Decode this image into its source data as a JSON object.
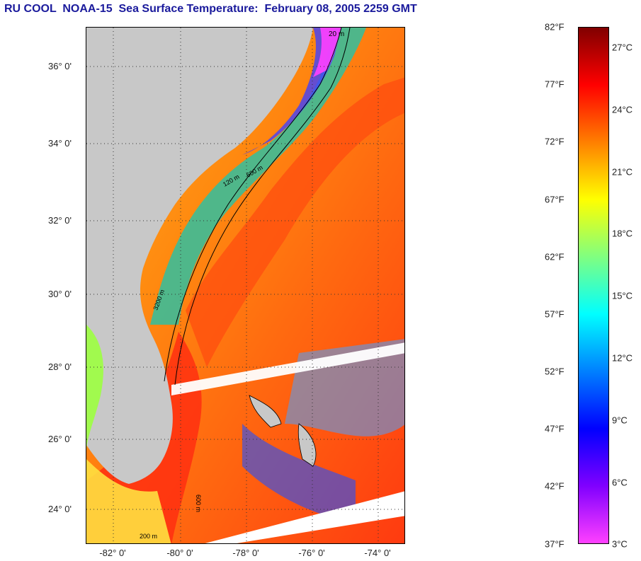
{
  "title": "RU COOL  NOAA-15  Sea Surface Temperature:  February 08, 2005 2259 GMT",
  "map": {
    "lat_labels": [
      "36° 0'",
      "34° 0'",
      "32° 0'",
      "30° 0'",
      "28° 0'",
      "26° 0'",
      "24° 0'"
    ],
    "lon_labels": [
      "-82° 0'",
      "-80° 0'",
      "-78° 0'",
      "-76° 0'",
      "-74° 0'"
    ],
    "land_color": "#c8c8c8",
    "isobath_labels": [
      "20 m",
      "120 m",
      "600 m",
      "600 m",
      "3200 m",
      "200 m"
    ]
  },
  "colorbar": {
    "fahrenheit_labels": [
      "82°F",
      "77°F",
      "72°F",
      "67°F",
      "62°F",
      "57°F",
      "52°F",
      "47°F",
      "42°F",
      "37°F"
    ],
    "celsius_labels": [
      "27°C",
      "24°C",
      "21°C",
      "18°C",
      "15°C",
      "12°C",
      "9°C",
      "6°C",
      "3°C"
    ],
    "gradient_colors": [
      "#800000",
      "#ff0000",
      "#ff7f00",
      "#ffff00",
      "#80ff80",
      "#00ffff",
      "#0080ff",
      "#0000ff",
      "#8000ff",
      "#ff40ff"
    ]
  }
}
